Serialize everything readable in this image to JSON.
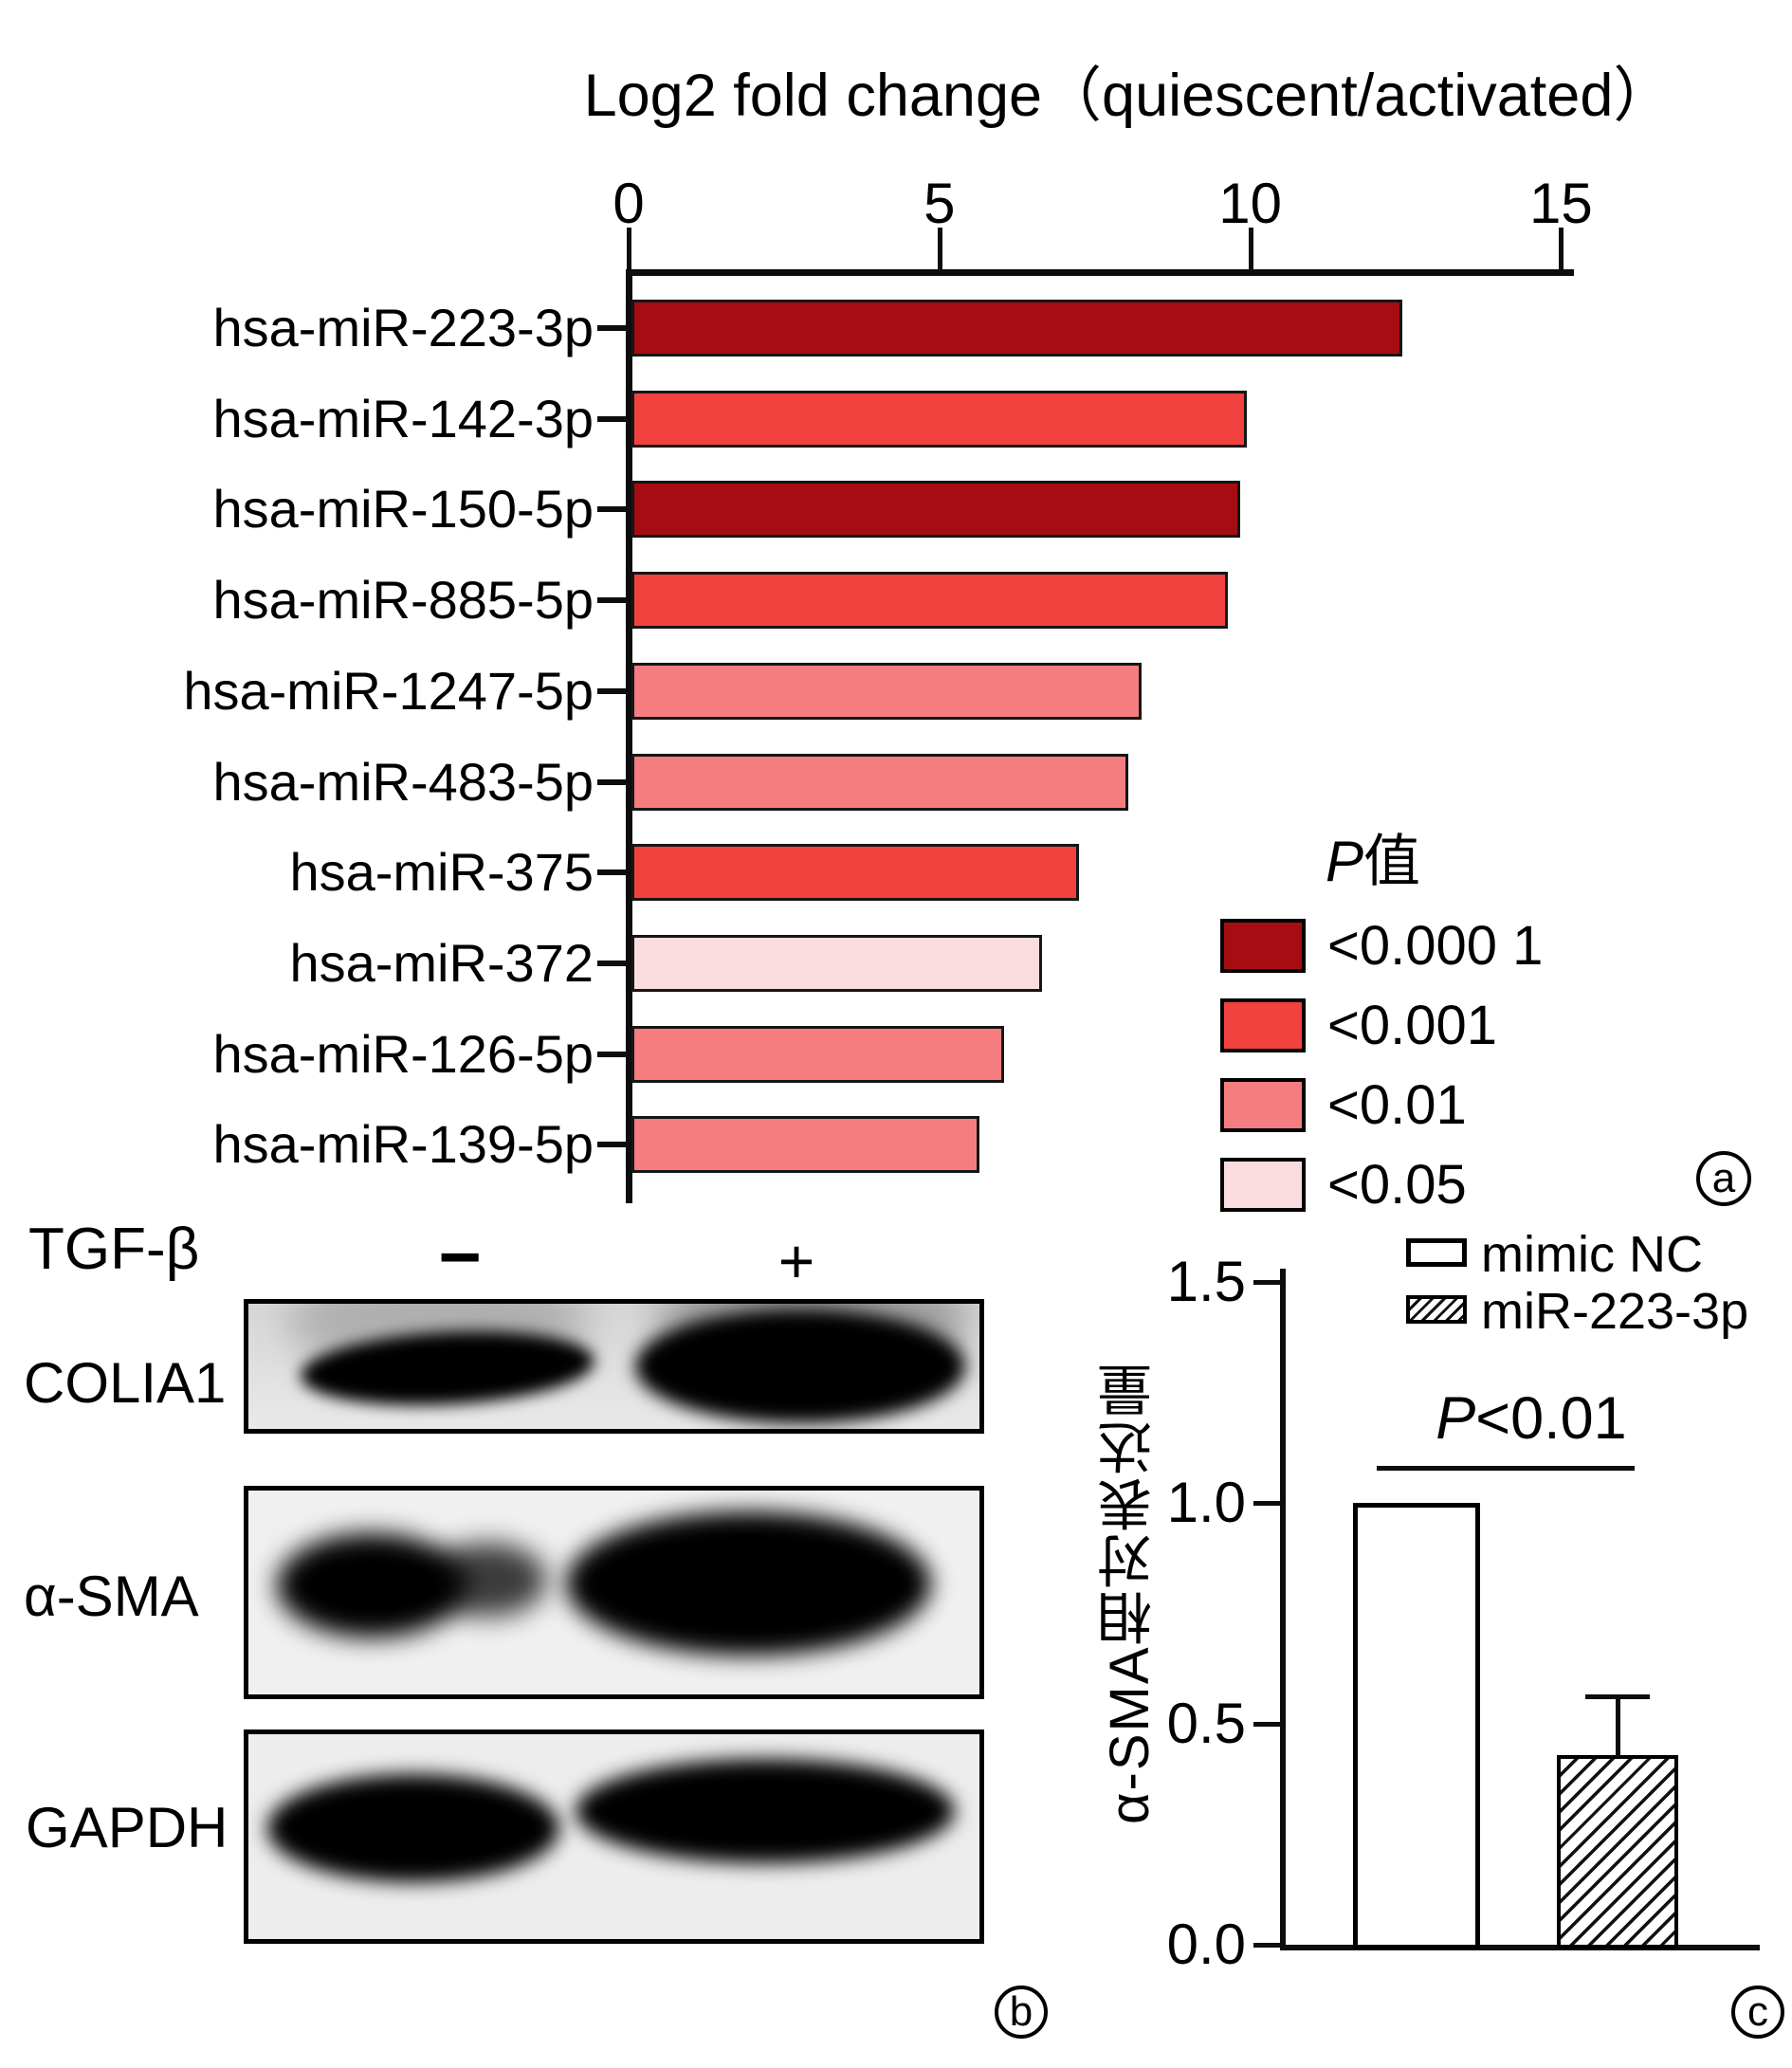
{
  "figure": {
    "panel_a": {
      "panel_letter": "a",
      "title": "Log2 fold change（quiescent/activated）",
      "legend": {
        "title_italic": "P",
        "title_cjk": "值",
        "entries": [
          {
            "label": "<0.000 1",
            "color": "#A50D12"
          },
          {
            "label": "<0.001",
            "color": "#F2423F"
          },
          {
            "label": "<0.01",
            "color": "#F57D80"
          },
          {
            "label": "<0.05",
            "color": "#FBDCDE"
          }
        ]
      },
      "chart_data": {
        "type": "bar",
        "orientation": "horizontal",
        "title": "Log2 fold change（quiescent/activated）",
        "xlim": [
          0,
          15
        ],
        "xticks": [
          0,
          5,
          10,
          15
        ],
        "grid": false,
        "legend_position": "right",
        "legend_title": "P值",
        "categories": [
          "hsa-miR-223-3p",
          "hsa-miR-142-3p",
          "hsa-miR-150-5p",
          "hsa-miR-885-5p",
          "hsa-miR-1247-5p",
          "hsa-miR-483-5p",
          "hsa-miR-375",
          "hsa-miR-372",
          "hsa-miR-126-5p",
          "hsa-miR-139-5p"
        ],
        "values": [
          12.4,
          9.9,
          9.8,
          9.6,
          8.2,
          8.0,
          7.2,
          6.6,
          6.0,
          5.6
        ],
        "p_values": [
          "<0.000 1",
          "<0.001",
          "<0.000 1",
          "<0.001",
          "<0.01",
          "<0.01",
          "<0.001",
          "<0.05",
          "<0.01",
          "<0.01"
        ]
      }
    },
    "panel_b": {
      "panel_letter": "b",
      "condition_label": "TGF-β",
      "conditions": [
        "−",
        "+"
      ],
      "proteins": [
        "COLIA1",
        "α-SMA",
        "GAPDH"
      ]
    },
    "panel_c": {
      "panel_letter": "c",
      "ylabel": "α-SMA相对表达量",
      "ytick_labels": [
        "1.5",
        "1.0",
        "0.5",
        "0.0"
      ],
      "significance_italic": "P",
      "significance_rest": "<0.01",
      "legend": [
        {
          "label": "mimic NC",
          "fill": "open"
        },
        {
          "label": "miR-223-3p",
          "fill": "hatched"
        }
      ],
      "chart_data": {
        "type": "bar",
        "categories": [
          "mimic NC",
          "miR-223-3p"
        ],
        "values": [
          1.0,
          0.43
        ],
        "error_plus": [
          0,
          0.13
        ],
        "ylabel": "α-SMA相对表达量",
        "ylim": [
          0,
          1.5
        ],
        "yticks": [
          0.0,
          0.5,
          1.0,
          1.5
        ],
        "annotation": "P<0.01",
        "grid": false,
        "legend_position": "top-right"
      }
    }
  }
}
